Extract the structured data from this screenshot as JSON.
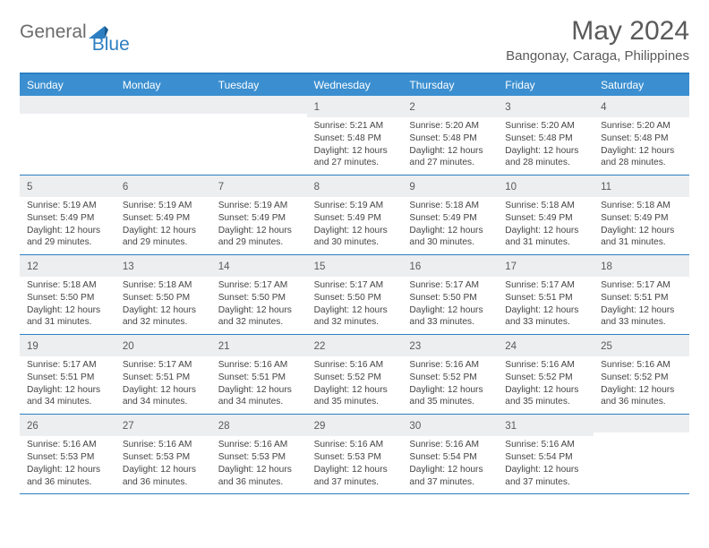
{
  "brand": {
    "part1": "General",
    "part2": "Blue"
  },
  "title": "May 2024",
  "location": "Bangonay, Caraga, Philippines",
  "colors": {
    "header_bg": "#3b8fd0",
    "border": "#2d7fc1",
    "daynum_bg": "#eceef0",
    "text": "#444444",
    "title_text": "#5a5a5a"
  },
  "dow": [
    "Sunday",
    "Monday",
    "Tuesday",
    "Wednesday",
    "Thursday",
    "Friday",
    "Saturday"
  ],
  "weeks": [
    [
      null,
      null,
      null,
      {
        "n": "1",
        "sr": "5:21 AM",
        "ss": "5:48 PM",
        "dl": "12 hours and 27 minutes."
      },
      {
        "n": "2",
        "sr": "5:20 AM",
        "ss": "5:48 PM",
        "dl": "12 hours and 27 minutes."
      },
      {
        "n": "3",
        "sr": "5:20 AM",
        "ss": "5:48 PM",
        "dl": "12 hours and 28 minutes."
      },
      {
        "n": "4",
        "sr": "5:20 AM",
        "ss": "5:48 PM",
        "dl": "12 hours and 28 minutes."
      }
    ],
    [
      {
        "n": "5",
        "sr": "5:19 AM",
        "ss": "5:49 PM",
        "dl": "12 hours and 29 minutes."
      },
      {
        "n": "6",
        "sr": "5:19 AM",
        "ss": "5:49 PM",
        "dl": "12 hours and 29 minutes."
      },
      {
        "n": "7",
        "sr": "5:19 AM",
        "ss": "5:49 PM",
        "dl": "12 hours and 29 minutes."
      },
      {
        "n": "8",
        "sr": "5:19 AM",
        "ss": "5:49 PM",
        "dl": "12 hours and 30 minutes."
      },
      {
        "n": "9",
        "sr": "5:18 AM",
        "ss": "5:49 PM",
        "dl": "12 hours and 30 minutes."
      },
      {
        "n": "10",
        "sr": "5:18 AM",
        "ss": "5:49 PM",
        "dl": "12 hours and 31 minutes."
      },
      {
        "n": "11",
        "sr": "5:18 AM",
        "ss": "5:49 PM",
        "dl": "12 hours and 31 minutes."
      }
    ],
    [
      {
        "n": "12",
        "sr": "5:18 AM",
        "ss": "5:50 PM",
        "dl": "12 hours and 31 minutes."
      },
      {
        "n": "13",
        "sr": "5:18 AM",
        "ss": "5:50 PM",
        "dl": "12 hours and 32 minutes."
      },
      {
        "n": "14",
        "sr": "5:17 AM",
        "ss": "5:50 PM",
        "dl": "12 hours and 32 minutes."
      },
      {
        "n": "15",
        "sr": "5:17 AM",
        "ss": "5:50 PM",
        "dl": "12 hours and 32 minutes."
      },
      {
        "n": "16",
        "sr": "5:17 AM",
        "ss": "5:50 PM",
        "dl": "12 hours and 33 minutes."
      },
      {
        "n": "17",
        "sr": "5:17 AM",
        "ss": "5:51 PM",
        "dl": "12 hours and 33 minutes."
      },
      {
        "n": "18",
        "sr": "5:17 AM",
        "ss": "5:51 PM",
        "dl": "12 hours and 33 minutes."
      }
    ],
    [
      {
        "n": "19",
        "sr": "5:17 AM",
        "ss": "5:51 PM",
        "dl": "12 hours and 34 minutes."
      },
      {
        "n": "20",
        "sr": "5:17 AM",
        "ss": "5:51 PM",
        "dl": "12 hours and 34 minutes."
      },
      {
        "n": "21",
        "sr": "5:16 AM",
        "ss": "5:51 PM",
        "dl": "12 hours and 34 minutes."
      },
      {
        "n": "22",
        "sr": "5:16 AM",
        "ss": "5:52 PM",
        "dl": "12 hours and 35 minutes."
      },
      {
        "n": "23",
        "sr": "5:16 AM",
        "ss": "5:52 PM",
        "dl": "12 hours and 35 minutes."
      },
      {
        "n": "24",
        "sr": "5:16 AM",
        "ss": "5:52 PM",
        "dl": "12 hours and 35 minutes."
      },
      {
        "n": "25",
        "sr": "5:16 AM",
        "ss": "5:52 PM",
        "dl": "12 hours and 36 minutes."
      }
    ],
    [
      {
        "n": "26",
        "sr": "5:16 AM",
        "ss": "5:53 PM",
        "dl": "12 hours and 36 minutes."
      },
      {
        "n": "27",
        "sr": "5:16 AM",
        "ss": "5:53 PM",
        "dl": "12 hours and 36 minutes."
      },
      {
        "n": "28",
        "sr": "5:16 AM",
        "ss": "5:53 PM",
        "dl": "12 hours and 36 minutes."
      },
      {
        "n": "29",
        "sr": "5:16 AM",
        "ss": "5:53 PM",
        "dl": "12 hours and 37 minutes."
      },
      {
        "n": "30",
        "sr": "5:16 AM",
        "ss": "5:54 PM",
        "dl": "12 hours and 37 minutes."
      },
      {
        "n": "31",
        "sr": "5:16 AM",
        "ss": "5:54 PM",
        "dl": "12 hours and 37 minutes."
      },
      null
    ]
  ],
  "labels": {
    "sunrise": "Sunrise: ",
    "sunset": "Sunset: ",
    "daylight": "Daylight: "
  }
}
